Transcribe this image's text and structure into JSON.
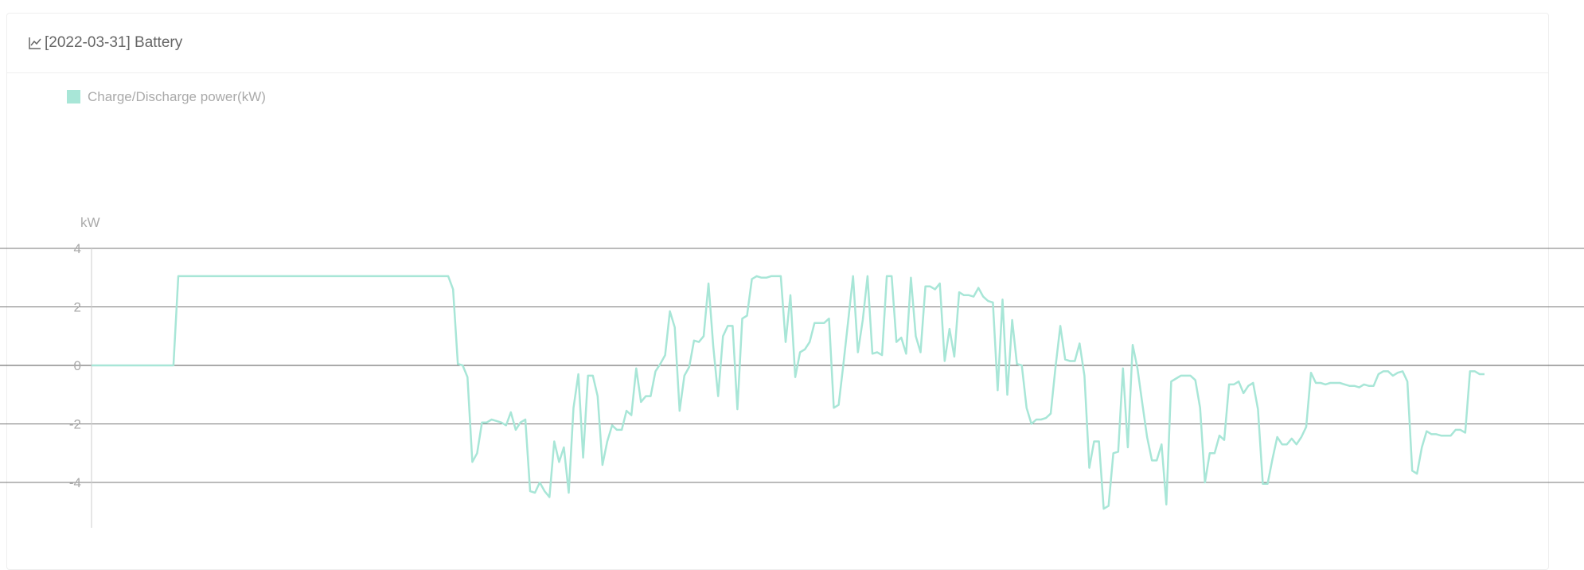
{
  "card": {
    "title": "[2022-03-31] Battery",
    "title_icon": "line-chart-icon"
  },
  "chart_data": {
    "type": "line",
    "title": "[2022-03-31] Battery",
    "ylabel": "kW",
    "xlabel": "",
    "ylim": [
      -5.5,
      4
    ],
    "yticks": [
      4,
      2,
      0,
      -2,
      -4
    ],
    "grid": true,
    "legend_position": "top-left",
    "series": [
      {
        "name": "Charge/Discharge power(kW)",
        "color": "#a8e6d7",
        "values": [
          0,
          0,
          0,
          0,
          0,
          0,
          0,
          0,
          0,
          0,
          0,
          0,
          0,
          0,
          0,
          0,
          0,
          0,
          3.05,
          3.05,
          3.05,
          3.05,
          3.05,
          3.05,
          3.05,
          3.05,
          3.05,
          3.05,
          3.05,
          3.05,
          3.05,
          3.05,
          3.05,
          3.05,
          3.05,
          3.05,
          3.05,
          3.05,
          3.05,
          3.05,
          3.05,
          3.05,
          3.05,
          3.05,
          3.05,
          3.05,
          3.05,
          3.05,
          3.05,
          3.05,
          3.05,
          3.05,
          3.05,
          3.05,
          3.05,
          3.05,
          3.05,
          3.05,
          3.05,
          3.05,
          3.05,
          3.05,
          3.05,
          3.05,
          3.05,
          3.05,
          3.05,
          3.05,
          3.05,
          3.05,
          3.05,
          3.05,
          3.05,
          3.05,
          3.05,
          2.6,
          0.05,
          0,
          -0.4,
          -3.3,
          -3.0,
          -1.95,
          -1.95,
          -1.85,
          -1.9,
          -1.95,
          -2.05,
          -1.6,
          -2.2,
          -1.95,
          -1.85,
          -4.3,
          -4.35,
          -4.0,
          -4.3,
          -4.5,
          -2.6,
          -3.3,
          -2.8,
          -4.35,
          -1.45,
          -0.3,
          -3.15,
          -0.35,
          -0.35,
          -1.05,
          -3.4,
          -2.6,
          -2.05,
          -2.2,
          -2.2,
          -1.55,
          -1.7,
          -0.1,
          -1.25,
          -1.05,
          -1.05,
          -0.2,
          0.05,
          0.35,
          1.85,
          1.3,
          -1.55,
          -0.35,
          -0.05,
          0.85,
          0.8,
          1.0,
          2.8,
          0.65,
          -1.05,
          1.0,
          1.35,
          1.35,
          -1.5,
          1.6,
          1.7,
          2.95,
          3.05,
          3.0,
          3.0,
          3.05,
          3.05,
          3.05,
          0.8,
          2.4,
          -0.4,
          0.45,
          0.55,
          0.8,
          1.45,
          1.45,
          1.45,
          1.6,
          -1.45,
          -1.35,
          0.05,
          1.55,
          3.05,
          0.45,
          1.55,
          3.05,
          0.4,
          0.45,
          0.35,
          3.05,
          3.05,
          0.8,
          0.95,
          0.4,
          3.0,
          1.0,
          0.45,
          2.7,
          2.7,
          2.6,
          2.8,
          0.15,
          1.25,
          0.3,
          2.5,
          2.4,
          2.4,
          2.35,
          2.65,
          2.35,
          2.2,
          2.15,
          -0.85,
          2.25,
          -1.0,
          1.55,
          0.05,
          0,
          -1.45,
          -2.0,
          -1.85,
          -1.85,
          -1.8,
          -1.65,
          -0.05,
          1.35,
          0.2,
          0.15,
          0.15,
          0.75,
          -0.35,
          -3.5,
          -2.6,
          -2.6,
          -4.9,
          -4.8,
          -3.0,
          -2.95,
          -0.1,
          -2.8,
          0.7,
          -0.1,
          -1.3,
          -2.45,
          -3.25,
          -3.25,
          -2.7,
          -4.75,
          -0.55,
          -0.45,
          -0.35,
          -0.35,
          -0.35,
          -0.5,
          -1.45,
          -4.0,
          -3.0,
          -3.0,
          -2.4,
          -2.55,
          -0.65,
          -0.65,
          -0.55,
          -0.95,
          -0.7,
          -0.6,
          -1.5,
          -4.05,
          -4.05,
          -3.2,
          -2.45,
          -2.7,
          -2.7,
          -2.5,
          -2.7,
          -2.45,
          -2.1,
          -0.25,
          -0.6,
          -0.6,
          -0.65,
          -0.6,
          -0.6,
          -0.6,
          -0.65,
          -0.7,
          -0.7,
          -0.75,
          -0.65,
          -0.7,
          -0.7,
          -0.3,
          -0.2,
          -0.2,
          -0.35,
          -0.25,
          -0.2,
          -0.55,
          -3.6,
          -3.7,
          -2.8,
          -2.25,
          -2.35,
          -2.35,
          -2.4,
          -2.4,
          -2.4,
          -2.2,
          -2.2,
          -2.3,
          -0.2,
          -0.2,
          -0.3,
          -0.3
        ]
      }
    ]
  }
}
